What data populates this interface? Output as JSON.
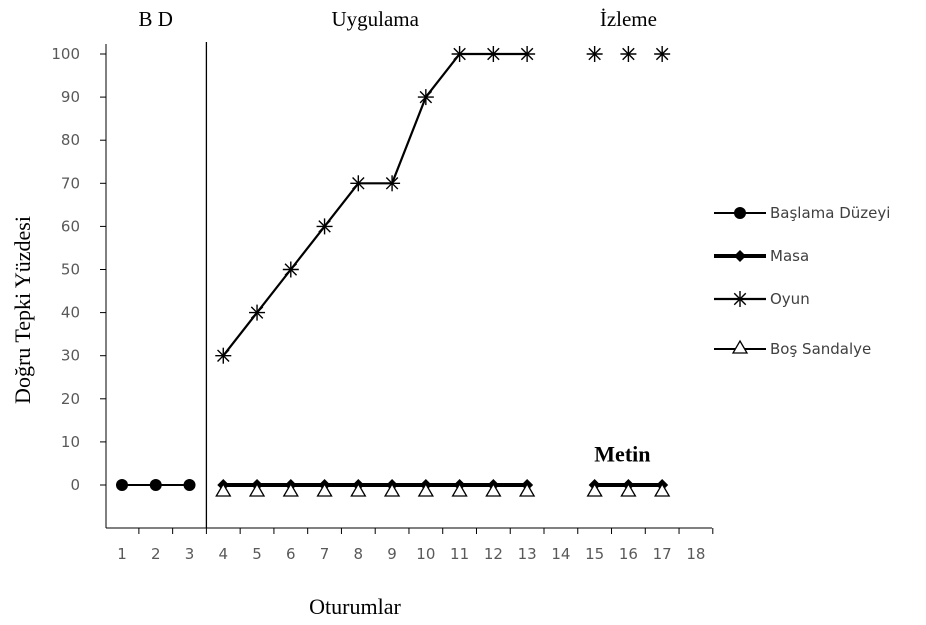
{
  "chart_data": {
    "type": "line",
    "xlabel": "Oturumlar",
    "ylabel": "Doğru Tepki Yüzdesi",
    "x_ticks": [
      1,
      2,
      3,
      4,
      5,
      6,
      7,
      8,
      9,
      10,
      11,
      12,
      13,
      14,
      15,
      16,
      17,
      18
    ],
    "y_ticks": [
      0,
      10,
      20,
      30,
      40,
      50,
      60,
      70,
      80,
      90,
      100
    ],
    "xlim": [
      0.5,
      18.5
    ],
    "ylim": [
      -10,
      100
    ],
    "grid": false,
    "legend_position": "right",
    "phases": [
      {
        "label": "B D",
        "x_range": [
          1,
          3
        ]
      },
      {
        "label": "Uygulama",
        "x_range": [
          4,
          13
        ]
      },
      {
        "label": "İzleme",
        "x_range": [
          15,
          17
        ]
      }
    ],
    "phase_divider_x": 3.5,
    "annotations": [
      {
        "text": "Metin",
        "x": 16,
        "y": 8
      }
    ],
    "series": [
      {
        "name": "Başlama Düzeyi",
        "marker": "circle",
        "points": [
          [
            1,
            0
          ],
          [
            2,
            0
          ],
          [
            3,
            0
          ]
        ]
      },
      {
        "name": "Masa",
        "marker": "diamond",
        "points": [
          [
            4,
            0
          ],
          [
            5,
            0
          ],
          [
            6,
            0
          ],
          [
            7,
            0
          ],
          [
            8,
            0
          ],
          [
            9,
            0
          ],
          [
            10,
            0
          ],
          [
            11,
            0
          ],
          [
            12,
            0
          ],
          [
            13,
            0
          ],
          [
            15,
            0
          ],
          [
            16,
            0
          ],
          [
            17,
            0
          ]
        ]
      },
      {
        "name": "Oyun",
        "marker": "star",
        "points": [
          [
            4,
            30
          ],
          [
            5,
            40
          ],
          [
            6,
            50
          ],
          [
            7,
            60
          ],
          [
            8,
            70
          ],
          [
            9,
            70
          ],
          [
            10,
            90
          ],
          [
            11,
            100
          ],
          [
            12,
            100
          ],
          [
            13,
            100
          ],
          [
            15,
            100
          ],
          [
            16,
            100
          ],
          [
            17,
            100
          ]
        ]
      },
      {
        "name": "Boş Sandalye",
        "marker": "triangle",
        "points": [
          [
            4,
            0
          ],
          [
            5,
            0
          ],
          [
            6,
            0
          ],
          [
            7,
            0
          ],
          [
            8,
            0
          ],
          [
            9,
            0
          ],
          [
            10,
            0
          ],
          [
            11,
            0
          ],
          [
            12,
            0
          ],
          [
            13,
            0
          ],
          [
            15,
            0
          ],
          [
            16,
            0
          ],
          [
            17,
            0
          ]
        ]
      }
    ]
  }
}
